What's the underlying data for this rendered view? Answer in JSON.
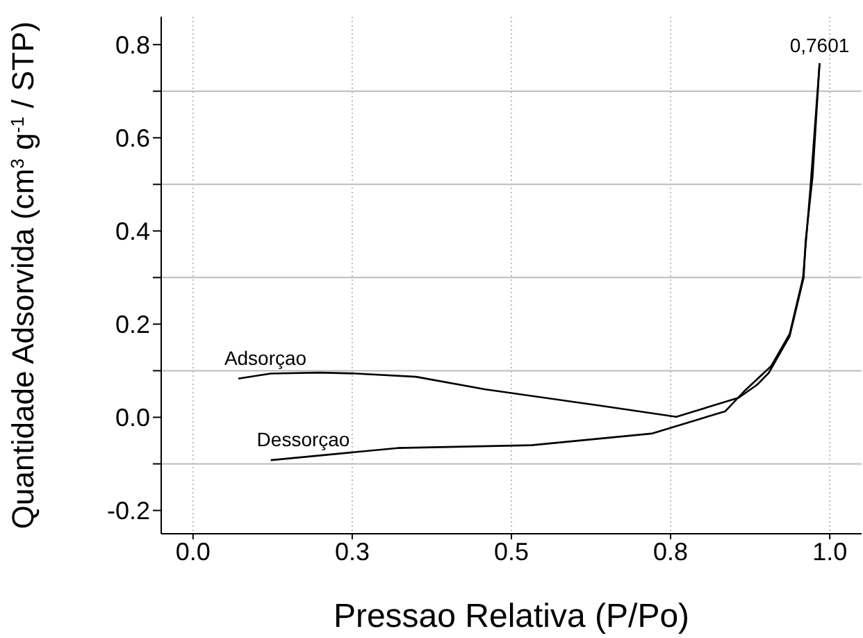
{
  "chart_data": {
    "type": "line",
    "xlabel": "Pressao Relativa  (P/Po)",
    "ylabel": "Quantidade Adsorvida  (cm$^{3}$ g$^{-1}$ / STP)",
    "xlim": [
      -0.05,
      1.05
    ],
    "xticks": [
      {
        "value": 0,
        "label": "0.0"
      },
      {
        "value": 0.25,
        "label": "0.3"
      },
      {
        "value": 0.5,
        "label": "0.5"
      },
      {
        "value": 0.75,
        "label": "0.8"
      },
      {
        "value": 1,
        "label": "1.0"
      }
    ],
    "ylim": [
      -0.25,
      0.86
    ],
    "yticks": [
      {
        "value": -0.2,
        "label": "-0.2"
      },
      {
        "value": -0.1,
        "label": null
      },
      {
        "value": 0,
        "label": "0.0"
      },
      {
        "value": 0.1,
        "label": null
      },
      {
        "value": 0.2,
        "label": "0.2"
      },
      {
        "value": 0.3,
        "label": null
      },
      {
        "value": 0.4,
        "label": "0.4"
      },
      {
        "value": 0.5,
        "label": null
      },
      {
        "value": 0.6,
        "label": "0.6"
      },
      {
        "value": 0.7,
        "label": null
      },
      {
        "value": 0.8,
        "label": "0.8"
      }
    ],
    "grid": true,
    "marker": "none",
    "line_style": "solid",
    "legend": false,
    "series": [
      {
        "name": "Adsorçao",
        "color": "#000000",
        "x": [
          0.071,
          0.122,
          0.198,
          0.256,
          0.35,
          0.459,
          0.64,
          0.759,
          0.857,
          0.886,
          0.904,
          0.937,
          0.959,
          0.962,
          0.973,
          0.984
        ],
        "values": [
          0.083,
          0.094,
          0.096,
          0.094,
          0.087,
          0.06,
          0.025,
          0.001,
          0.042,
          0.07,
          0.095,
          0.174,
          0.3,
          0.378,
          0.517,
          0.7601
        ]
      },
      {
        "name": "Dessorçao",
        "color": "#000000",
        "x": [
          0.122,
          0.321,
          0.531,
          0.72,
          0.836,
          0.865,
          0.908,
          0.937,
          0.958,
          0.97,
          0.984
        ],
        "values": [
          -0.092,
          -0.066,
          -0.06,
          -0.035,
          0.013,
          0.055,
          0.11,
          0.179,
          0.3,
          0.5,
          0.7601
        ]
      }
    ],
    "annotations": [
      {
        "text": "0,7601",
        "x": 0.984,
        "y": 0.7601
      }
    ]
  }
}
